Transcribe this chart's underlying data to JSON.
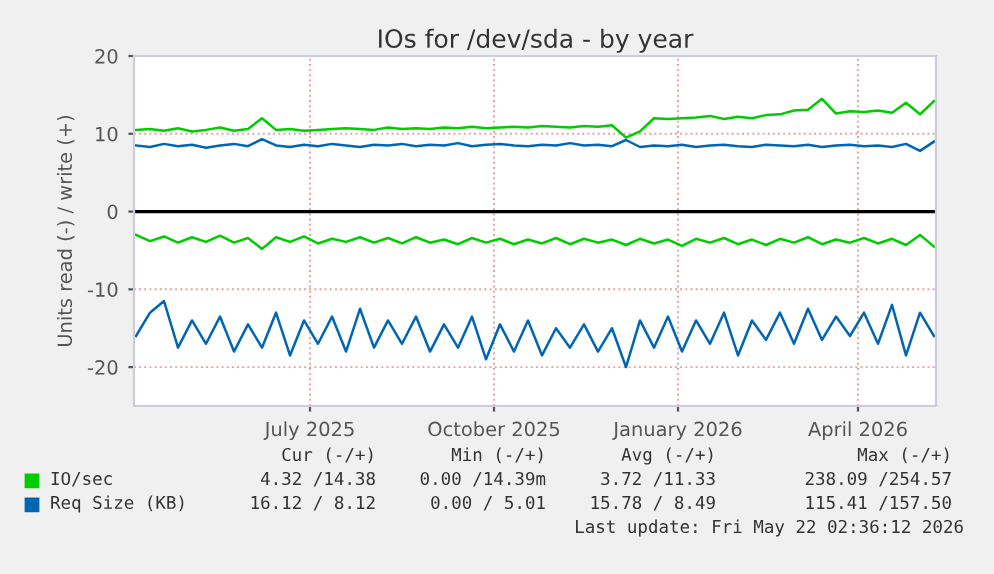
{
  "chart_data": {
    "type": "line",
    "title": "IOs for /dev/sda - by year",
    "ylabel": "Units read (-) / write (+)",
    "x": [
      "2025-04-05",
      "2025-04-12",
      "2025-04-19",
      "2025-04-26",
      "2025-05-03",
      "2025-05-10",
      "2025-05-17",
      "2025-05-24",
      "2025-05-31",
      "2025-06-07",
      "2025-06-14",
      "2025-06-21",
      "2025-06-28",
      "2025-07-05",
      "2025-07-12",
      "2025-07-19",
      "2025-07-26",
      "2025-08-02",
      "2025-08-09",
      "2025-08-16",
      "2025-08-23",
      "2025-08-30",
      "2025-09-06",
      "2025-09-13",
      "2025-09-20",
      "2025-09-27",
      "2025-10-04",
      "2025-10-11",
      "2025-10-18",
      "2025-10-25",
      "2025-11-01",
      "2025-11-08",
      "2025-11-15",
      "2025-11-22",
      "2025-11-29",
      "2025-12-06",
      "2025-12-13",
      "2025-12-20",
      "2025-12-27",
      "2026-01-03",
      "2026-01-10",
      "2026-01-17",
      "2026-01-24",
      "2026-01-31",
      "2026-02-07",
      "2026-02-14",
      "2026-02-21",
      "2026-02-28",
      "2026-03-07",
      "2026-03-14",
      "2026-03-21",
      "2026-03-28",
      "2026-04-04",
      "2026-04-11",
      "2026-04-18",
      "2026-04-25",
      "2026-05-02",
      "2026-05-09"
    ],
    "series": [
      {
        "name": "IO/sec",
        "color": "#00cc00",
        "values": [
          10.5,
          10.6,
          10.4,
          10.7,
          10.3,
          10.5,
          10.8,
          10.4,
          10.6,
          12.0,
          10.5,
          10.6,
          10.4,
          10.5,
          10.6,
          10.7,
          10.6,
          10.5,
          10.8,
          10.6,
          10.7,
          10.6,
          10.8,
          10.7,
          10.9,
          10.7,
          10.8,
          10.9,
          10.8,
          11.0,
          10.9,
          10.8,
          11.0,
          10.9,
          11.1,
          9.5,
          10.3,
          12.0,
          11.9,
          12.0,
          12.1,
          12.3,
          11.9,
          12.2,
          12.0,
          12.4,
          12.5,
          13.0,
          13.1,
          14.5,
          12.6,
          12.9,
          12.8,
          13.0,
          12.7,
          14.0,
          12.5,
          14.2
        ]
      },
      {
        "color": "#00cc00",
        "values": [
          -3.0,
          -3.8,
          -3.2,
          -4.0,
          -3.3,
          -3.9,
          -3.1,
          -4.0,
          -3.4,
          -4.8,
          -3.3,
          -3.9,
          -3.2,
          -4.1,
          -3.5,
          -3.9,
          -3.3,
          -4.0,
          -3.4,
          -4.1,
          -3.3,
          -4.0,
          -3.6,
          -4.2,
          -3.4,
          -4.0,
          -3.5,
          -4.2,
          -3.6,
          -4.1,
          -3.4,
          -4.2,
          -3.5,
          -4.0,
          -3.6,
          -4.3,
          -3.5,
          -4.1,
          -3.6,
          -4.4,
          -3.5,
          -4.0,
          -3.4,
          -4.2,
          -3.6,
          -4.3,
          -3.5,
          -4.0,
          -3.3,
          -4.2,
          -3.6,
          -4.0,
          -3.4,
          -4.1,
          -3.5,
          -4.3,
          -3.0,
          -4.5
        ]
      },
      {
        "name": "Req Size (KB)",
        "color": "#0066b3",
        "values": [
          8.5,
          8.3,
          8.7,
          8.4,
          8.6,
          8.2,
          8.5,
          8.7,
          8.4,
          9.3,
          8.5,
          8.3,
          8.6,
          8.4,
          8.7,
          8.5,
          8.3,
          8.6,
          8.5,
          8.7,
          8.4,
          8.6,
          8.5,
          8.8,
          8.4,
          8.6,
          8.7,
          8.5,
          8.4,
          8.6,
          8.5,
          8.8,
          8.5,
          8.6,
          8.4,
          9.2,
          8.3,
          8.5,
          8.4,
          8.6,
          8.3,
          8.5,
          8.6,
          8.4,
          8.3,
          8.6,
          8.5,
          8.4,
          8.6,
          8.3,
          8.5,
          8.6,
          8.4,
          8.5,
          8.3,
          8.7,
          7.8,
          9.0
        ]
      },
      {
        "color": "#0066b3",
        "values": [
          -16.0,
          -13.0,
          -11.5,
          -17.5,
          -14.0,
          -17.0,
          -13.5,
          -18.0,
          -14.5,
          -17.5,
          -13.0,
          -18.5,
          -14.0,
          -17.0,
          -13.5,
          -18.0,
          -12.5,
          -17.5,
          -14.0,
          -17.0,
          -13.5,
          -18.0,
          -14.5,
          -17.5,
          -13.5,
          -19.0,
          -14.5,
          -18.0,
          -14.0,
          -18.5,
          -15.0,
          -17.5,
          -14.5,
          -18.0,
          -15.0,
          -20.0,
          -14.0,
          -17.5,
          -13.5,
          -18.0,
          -14.0,
          -17.0,
          -13.0,
          -18.5,
          -14.0,
          -16.5,
          -13.0,
          -17.0,
          -12.5,
          -16.5,
          -13.5,
          -16.0,
          -13.0,
          -17.0,
          -12.0,
          -18.5,
          -13.0,
          -16.0
        ]
      }
    ],
    "xlim": [
      "2025-04-04",
      "2026-05-10"
    ],
    "xticks": [
      {
        "value": "2025-07-01",
        "label": "July 2025"
      },
      {
        "value": "2025-10-01",
        "label": "October 2025"
      },
      {
        "value": "2026-01-01",
        "label": "January 2026"
      },
      {
        "value": "2026-04-01",
        "label": "April 2026"
      }
    ],
    "ylim": [
      -25,
      20
    ],
    "yticks": [
      -20,
      -10,
      0,
      10,
      20
    ],
    "ref_lines": [
      {
        "axis": "y",
        "value": 0,
        "color": "#000000"
      }
    ],
    "grid": true,
    "legend": "bottom",
    "annotations": [
      "Cur (-/+)",
      "Min (-/+)",
      "Avg (-/+)",
      "Max (-/+)",
      "4.32 /14.38",
      "0.00 /14.39m",
      "3.72 /11.33",
      "238.09 /254.57",
      "16.12 / 8.12",
      "0.00 / 5.01",
      "15.78 / 8.49",
      "115.41 /157.50",
      "Last update: Fri May 22 02:36:12 2026"
    ]
  }
}
